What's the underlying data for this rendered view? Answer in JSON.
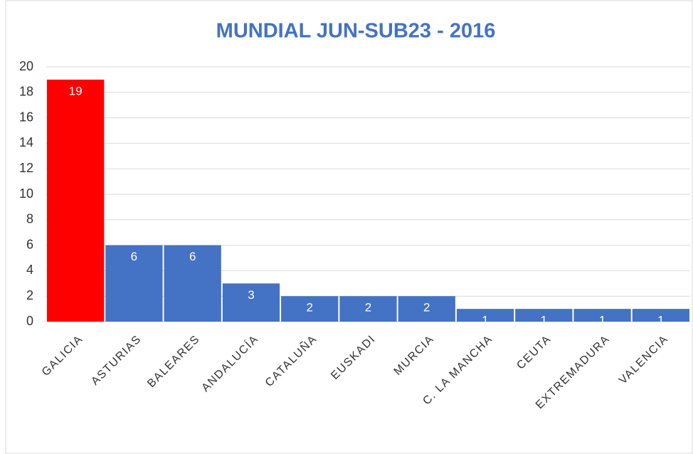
{
  "chart_data": {
    "type": "bar",
    "title": "MUNDIAL JUN-SUB23 - 2016",
    "categories": [
      "GALICIA",
      "ASTURIAS",
      "BALEARES",
      "ANDALUCÍA",
      "CATALUÑA",
      "EUSKADI",
      "MURCIA",
      "C. LA MANCHA",
      "CEUTA",
      "EXTREMADURA",
      "VALENCIA"
    ],
    "values": [
      19,
      6,
      6,
      3,
      2,
      2,
      2,
      1,
      1,
      1,
      1
    ],
    "colors": [
      "#ff0000",
      "#4472c4",
      "#4472c4",
      "#4472c4",
      "#4472c4",
      "#4472c4",
      "#4472c4",
      "#4472c4",
      "#4472c4",
      "#4472c4",
      "#4472c4"
    ],
    "ylim": [
      0,
      20
    ],
    "yticks": [
      0,
      2,
      4,
      6,
      8,
      10,
      12,
      14,
      16,
      18,
      20
    ],
    "grid": true
  }
}
